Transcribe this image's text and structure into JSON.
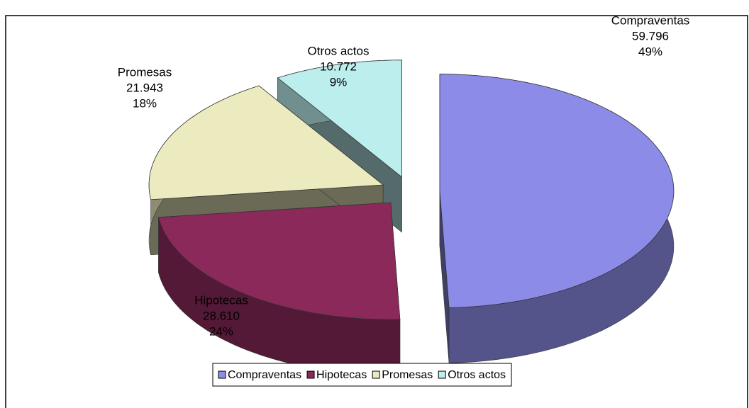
{
  "chart_data": {
    "type": "pie3d",
    "categories": [
      "Compraventas",
      "Hipotecas",
      "Promesas",
      "Otros actos"
    ],
    "values": [
      59796,
      28610,
      21943,
      10772
    ],
    "value_labels": [
      "59.796",
      "28.610",
      "21.943",
      "10.772"
    ],
    "percent_labels": [
      "49%",
      "24%",
      "18%",
      "9%"
    ],
    "colors": [
      "#8c8ce8",
      "#8b2a5a",
      "#ecebc0",
      "#bdeeee"
    ],
    "legend": "bottom"
  }
}
